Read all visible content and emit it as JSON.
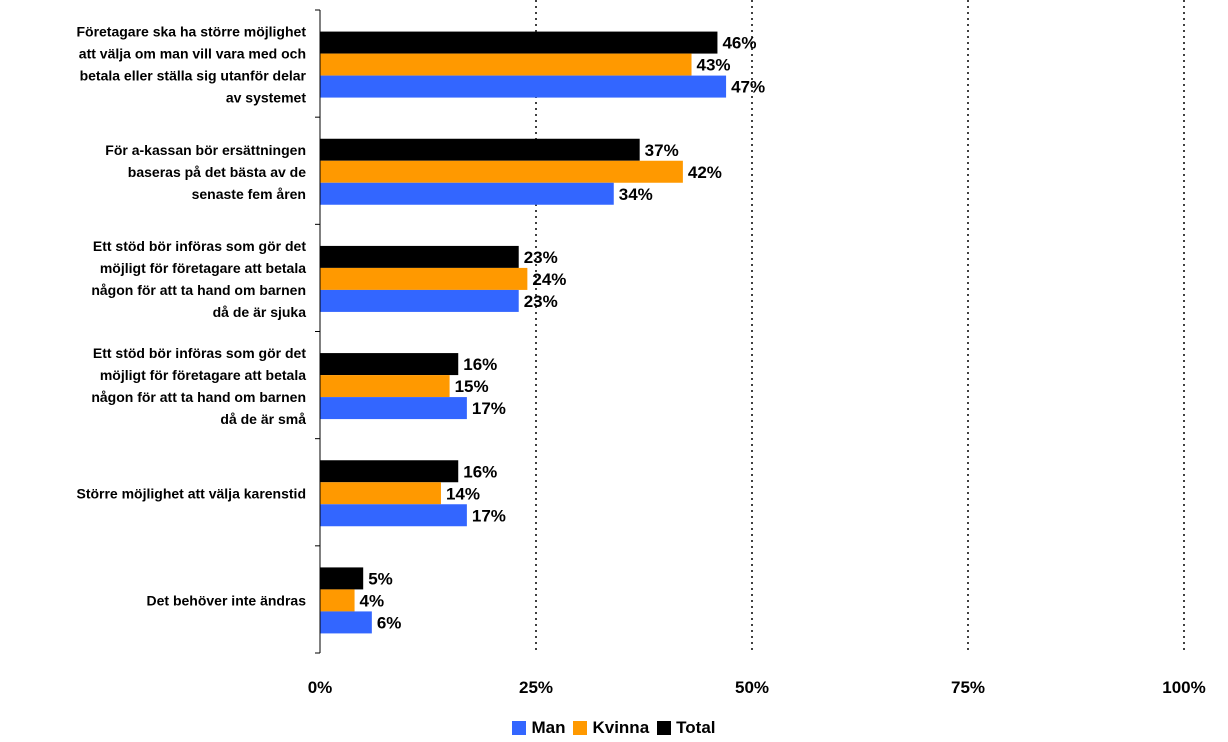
{
  "chart_data": {
    "type": "bar",
    "orientation": "horizontal",
    "categories": [
      [
        "Företagare ska ha större möjlighet",
        "att välja om man vill vara med och",
        "betala eller ställa sig utanför delar",
        "av systemet"
      ],
      [
        "För a-kassan bör ersättningen",
        "baseras på det bästa av de",
        "senaste fem åren"
      ],
      [
        "Ett stöd bör införas som gör det",
        "möjligt för företagare att betala",
        "någon för att ta hand om barnen",
        "då de är sjuka"
      ],
      [
        "Ett stöd bör införas som gör det",
        "möjligt för företagare att betala",
        "någon för att ta hand om barnen",
        "då de är små"
      ],
      [
        "Större möjlighet att välja karenstid"
      ],
      [
        "Det behöver inte ändras"
      ]
    ],
    "series": [
      {
        "name": "Total",
        "color": "#000000",
        "values": [
          46,
          37,
          23,
          16,
          16,
          5
        ]
      },
      {
        "name": "Kvinna",
        "color": "#FF9900",
        "values": [
          43,
          42,
          24,
          15,
          14,
          4
        ]
      },
      {
        "name": "Man",
        "color": "#3366FF",
        "values": [
          47,
          34,
          23,
          17,
          17,
          6
        ]
      }
    ],
    "value_labels": [
      [
        "46%",
        "37%",
        "23%",
        "16%",
        "16%",
        "5%"
      ],
      [
        "43%",
        "42%",
        "24%",
        "15%",
        "14%",
        "4%"
      ],
      [
        "47%",
        "34%",
        "23%",
        "17%",
        "17%",
        "6%"
      ]
    ],
    "xlim": [
      0,
      100
    ],
    "xticks": [
      0,
      25,
      50,
      75,
      100
    ],
    "xtick_labels": [
      "0%",
      "25%",
      "50%",
      "75%",
      "100%"
    ],
    "grid": "vertical dotted",
    "legend_position": "bottom",
    "legend": [
      {
        "name": "Man",
        "color": "#3366FF"
      },
      {
        "name": "Kvinna",
        "color": "#FF9900"
      },
      {
        "name": "Total",
        "color": "#000000"
      }
    ],
    "title": "",
    "xlabel": "",
    "ylabel": ""
  }
}
